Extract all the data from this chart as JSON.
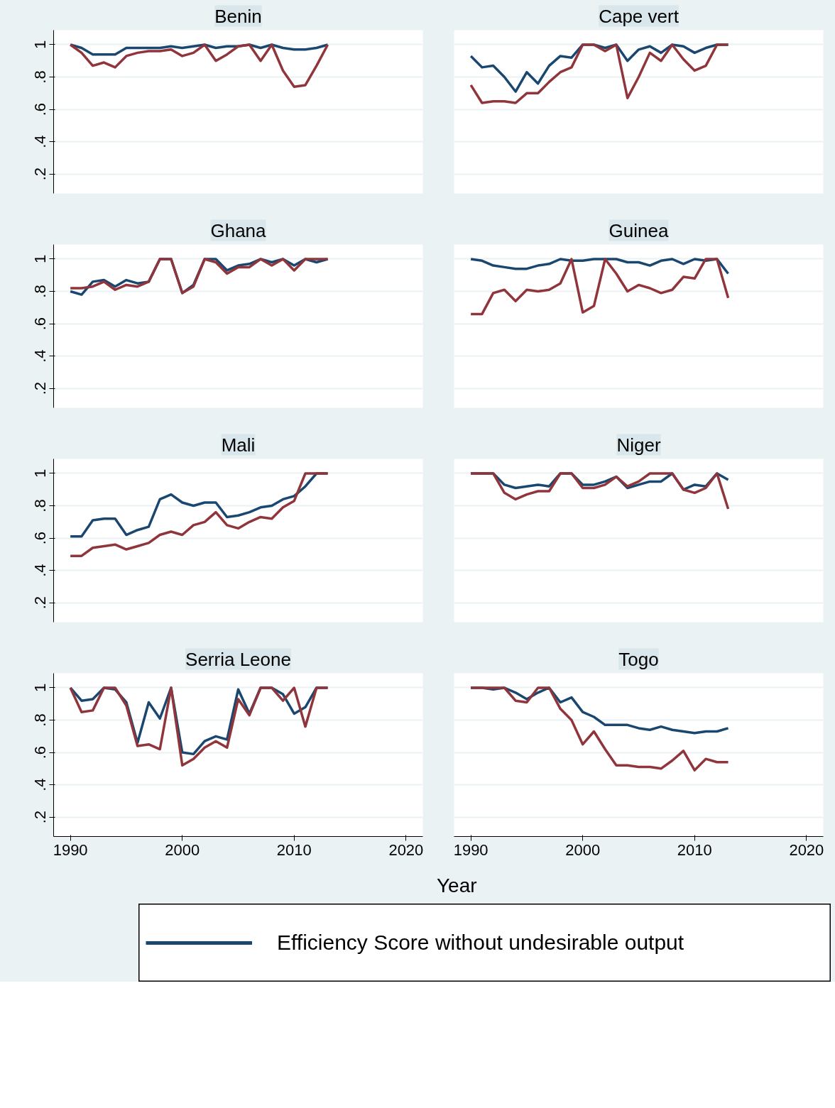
{
  "chart_data": [
    {
      "type": "line",
      "title": "Benin",
      "x": [
        1990,
        1991,
        1992,
        1993,
        1994,
        1995,
        1996,
        1997,
        1998,
        1999,
        2000,
        2001,
        2002,
        2003,
        2004,
        2005,
        2006,
        2007,
        2008,
        2009,
        2010,
        2011,
        2012,
        2013
      ],
      "xlim": [
        1988.5,
        2021.5
      ],
      "ylim": [
        0.08,
        1.09
      ],
      "yticks": [
        {
          "value": 0.2,
          "label": ".2"
        },
        {
          "value": 0.4,
          "label": ".4"
        },
        {
          "value": 0.6,
          "label": ".6"
        },
        {
          "value": 0.8,
          "label": ".8"
        },
        {
          "value": 1,
          "label": "1"
        }
      ],
      "grid": "y",
      "tick_labels": "y",
      "series": [
        {
          "color": "#1a476f",
          "values": [
            1,
            0.98,
            0.94,
            0.94,
            0.94,
            0.98,
            0.98,
            0.98,
            0.98,
            0.99,
            0.98,
            0.99,
            1,
            0.98,
            0.99,
            0.99,
            1,
            0.98,
            1,
            0.98,
            0.97,
            0.97,
            0.98,
            1
          ]
        },
        {
          "color": "#90353b",
          "values": [
            1,
            0.95,
            0.87,
            0.89,
            0.86,
            0.93,
            0.95,
            0.96,
            0.96,
            0.97,
            0.93,
            0.95,
            1,
            0.9,
            0.94,
            0.99,
            1,
            0.9,
            1,
            0.84,
            0.74,
            0.75,
            0.87,
            1
          ]
        }
      ]
    },
    {
      "type": "line",
      "title": "Cape vert",
      "x": [
        1990,
        1991,
        1992,
        1993,
        1994,
        1995,
        1996,
        1997,
        1998,
        1999,
        2000,
        2001,
        2002,
        2003,
        2004,
        2005,
        2006,
        2007,
        2008,
        2009,
        2010,
        2011,
        2012,
        2013
      ],
      "xlim": [
        1988.5,
        2021.5
      ],
      "ylim": [
        0.08,
        1.09
      ],
      "yticks": [
        0.2,
        0.4,
        0.6,
        0.8,
        1
      ],
      "grid": "y",
      "tick_labels": false,
      "series": [
        {
          "color": "#1a476f",
          "values": [
            0.93,
            0.86,
            0.87,
            0.8,
            0.71,
            0.83,
            0.76,
            0.87,
            0.93,
            0.92,
            1,
            1,
            0.98,
            1,
            0.9,
            0.97,
            0.99,
            0.95,
            1,
            0.99,
            0.95,
            0.98,
            1,
            1
          ]
        },
        {
          "color": "#90353b",
          "values": [
            0.75,
            0.64,
            0.65,
            0.65,
            0.64,
            0.7,
            0.7,
            0.77,
            0.83,
            0.86,
            1,
            1,
            0.96,
            1,
            0.67,
            0.8,
            0.95,
            0.9,
            1,
            0.91,
            0.84,
            0.87,
            1,
            1
          ]
        }
      ]
    },
    {
      "type": "line",
      "title": "Ghana",
      "x": [
        1990,
        1991,
        1992,
        1993,
        1994,
        1995,
        1996,
        1997,
        1998,
        1999,
        2000,
        2001,
        2002,
        2003,
        2004,
        2005,
        2006,
        2007,
        2008,
        2009,
        2010,
        2011,
        2012,
        2013
      ],
      "xlim": [
        1988.5,
        2021.5
      ],
      "ylim": [
        0.08,
        1.09
      ],
      "yticks": [
        {
          "value": 0.2,
          "label": ".2"
        },
        {
          "value": 0.4,
          "label": ".4"
        },
        {
          "value": 0.6,
          "label": ".6"
        },
        {
          "value": 0.8,
          "label": ".8"
        },
        {
          "value": 1,
          "label": "1"
        }
      ],
      "grid": "y",
      "tick_labels": "y",
      "series": [
        {
          "color": "#1a476f",
          "values": [
            0.8,
            0.78,
            0.86,
            0.87,
            0.83,
            0.87,
            0.85,
            0.86,
            1,
            1,
            0.79,
            0.84,
            1,
            1,
            0.93,
            0.96,
            0.97,
            1,
            0.98,
            1,
            0.96,
            1,
            0.98,
            1
          ]
        },
        {
          "color": "#90353b",
          "values": [
            0.82,
            0.82,
            0.83,
            0.86,
            0.81,
            0.84,
            0.83,
            0.86,
            1,
            1,
            0.79,
            0.83,
            1,
            0.98,
            0.91,
            0.95,
            0.95,
            1,
            0.96,
            1,
            0.93,
            1,
            1,
            1
          ]
        }
      ]
    },
    {
      "type": "line",
      "title": "Guinea",
      "x": [
        1990,
        1991,
        1992,
        1993,
        1994,
        1995,
        1996,
        1997,
        1998,
        1999,
        2000,
        2001,
        2002,
        2003,
        2004,
        2005,
        2006,
        2007,
        2008,
        2009,
        2010,
        2011,
        2012,
        2013
      ],
      "xlim": [
        1988.5,
        2021.5
      ],
      "ylim": [
        0.08,
        1.09
      ],
      "yticks": [
        0.2,
        0.4,
        0.6,
        0.8,
        1
      ],
      "grid": "y",
      "tick_labels": false,
      "series": [
        {
          "color": "#1a476f",
          "values": [
            1,
            0.99,
            0.96,
            0.95,
            0.94,
            0.94,
            0.96,
            0.97,
            1,
            0.99,
            0.99,
            1,
            1,
            1,
            0.98,
            0.98,
            0.96,
            0.99,
            1,
            0.97,
            1,
            0.99,
            1,
            0.91
          ]
        },
        {
          "color": "#90353b",
          "values": [
            0.66,
            0.66,
            0.79,
            0.81,
            0.74,
            0.81,
            0.8,
            0.81,
            0.85,
            1,
            0.67,
            0.71,
            1,
            0.91,
            0.8,
            0.84,
            0.82,
            0.79,
            0.81,
            0.89,
            0.88,
            1,
            1,
            0.76
          ]
        }
      ]
    },
    {
      "type": "line",
      "title": "Mali",
      "x": [
        1990,
        1991,
        1992,
        1993,
        1994,
        1995,
        1996,
        1997,
        1998,
        1999,
        2000,
        2001,
        2002,
        2003,
        2004,
        2005,
        2006,
        2007,
        2008,
        2009,
        2010,
        2011,
        2012,
        2013
      ],
      "xlim": [
        1988.5,
        2021.5
      ],
      "ylim": [
        0.08,
        1.09
      ],
      "yticks": [
        {
          "value": 0.2,
          "label": ".2"
        },
        {
          "value": 0.4,
          "label": ".4"
        },
        {
          "value": 0.6,
          "label": ".6"
        },
        {
          "value": 0.8,
          "label": ".8"
        },
        {
          "value": 1,
          "label": "1"
        }
      ],
      "grid": "y",
      "tick_labels": "y",
      "series": [
        {
          "color": "#1a476f",
          "values": [
            0.61,
            0.61,
            0.71,
            0.72,
            0.72,
            0.62,
            0.65,
            0.67,
            0.84,
            0.87,
            0.82,
            0.8,
            0.82,
            0.82,
            0.73,
            0.74,
            0.76,
            0.79,
            0.8,
            0.84,
            0.86,
            0.92,
            1,
            1
          ]
        },
        {
          "color": "#90353b",
          "values": [
            0.49,
            0.49,
            0.54,
            0.55,
            0.56,
            0.53,
            0.55,
            0.57,
            0.62,
            0.64,
            0.62,
            0.68,
            0.7,
            0.76,
            0.68,
            0.66,
            0.7,
            0.73,
            0.72,
            0.79,
            0.83,
            1,
            1,
            1
          ]
        }
      ]
    },
    {
      "type": "line",
      "title": "Niger",
      "x": [
        1990,
        1991,
        1992,
        1993,
        1994,
        1995,
        1996,
        1997,
        1998,
        1999,
        2000,
        2001,
        2002,
        2003,
        2004,
        2005,
        2006,
        2007,
        2008,
        2009,
        2010,
        2011,
        2012,
        2013
      ],
      "xlim": [
        1988.5,
        2021.5
      ],
      "ylim": [
        0.08,
        1.09
      ],
      "yticks": [
        0.2,
        0.4,
        0.6,
        0.8,
        1
      ],
      "grid": "y",
      "tick_labels": false,
      "series": [
        {
          "color": "#1a476f",
          "values": [
            1,
            1,
            1,
            0.93,
            0.91,
            0.92,
            0.93,
            0.92,
            1,
            1,
            0.93,
            0.93,
            0.95,
            0.98,
            0.91,
            0.93,
            0.95,
            0.95,
            1,
            0.9,
            0.93,
            0.92,
            1,
            0.96
          ]
        },
        {
          "color": "#90353b",
          "values": [
            1,
            1,
            1,
            0.88,
            0.84,
            0.87,
            0.89,
            0.89,
            1,
            1,
            0.91,
            0.91,
            0.93,
            0.98,
            0.92,
            0.95,
            1,
            1,
            1,
            0.9,
            0.88,
            0.91,
            1,
            0.78
          ]
        }
      ]
    },
    {
      "type": "line",
      "title": "Serria Leone",
      "x": [
        1990,
        1991,
        1992,
        1993,
        1994,
        1995,
        1996,
        1997,
        1998,
        1999,
        2000,
        2001,
        2002,
        2003,
        2004,
        2005,
        2006,
        2007,
        2008,
        2009,
        2010,
        2011,
        2012,
        2013
      ],
      "xlim": [
        1988.5,
        2021.5
      ],
      "xticks": [
        1990,
        2000,
        2010,
        2020
      ],
      "ylim": [
        0.08,
        1.09
      ],
      "yticks": [
        {
          "value": 0.2,
          "label": ".2"
        },
        {
          "value": 0.4,
          "label": ".4"
        },
        {
          "value": 0.6,
          "label": ".6"
        },
        {
          "value": 0.8,
          "label": ".8"
        },
        {
          "value": 1,
          "label": "1"
        }
      ],
      "grid": "y",
      "series": [
        {
          "color": "#1a476f",
          "values": [
            1,
            0.92,
            0.93,
            1,
            0.99,
            0.91,
            0.66,
            0.91,
            0.81,
            1,
            0.6,
            0.59,
            0.67,
            0.7,
            0.68,
            0.99,
            0.84,
            1,
            1,
            0.96,
            0.84,
            0.88,
            1,
            1
          ]
        },
        {
          "color": "#90353b",
          "values": [
            1,
            0.85,
            0.86,
            1,
            1,
            0.89,
            0.64,
            0.65,
            0.62,
            1,
            0.52,
            0.56,
            0.63,
            0.67,
            0.63,
            0.93,
            0.83,
            1,
            1,
            0.92,
            1,
            0.76,
            1,
            1
          ]
        }
      ]
    },
    {
      "type": "line",
      "title": "Togo",
      "xlabel": "Year",
      "legend": "bottom",
      "x": [
        1990,
        1991,
        1992,
        1993,
        1994,
        1995,
        1996,
        1997,
        1998,
        1999,
        2000,
        2001,
        2002,
        2003,
        2004,
        2005,
        2006,
        2007,
        2008,
        2009,
        2010,
        2011,
        2012,
        2013
      ],
      "xlim": [
        1988.5,
        2021.5
      ],
      "xticks": [
        1990,
        2000,
        2010,
        2020
      ],
      "ylim": [
        0.08,
        1.09
      ],
      "yticks": [
        0.2,
        0.4,
        0.6,
        0.8,
        1
      ],
      "grid": "y",
      "tick_labels": "x",
      "series": [
        {
          "name": "Efficiency Score without undesirable output",
          "color": "#1a476f",
          "values": [
            1,
            1,
            0.99,
            1,
            0.97,
            0.93,
            0.97,
            1,
            0.91,
            0.94,
            0.85,
            0.82,
            0.77,
            0.77,
            0.77,
            0.75,
            0.74,
            0.76,
            0.74,
            0.73,
            0.72,
            0.73,
            0.73,
            0.75
          ]
        },
        {
          "color": "#90353b",
          "values": [
            1,
            1,
            1,
            1,
            0.92,
            0.91,
            1,
            1,
            0.87,
            0.8,
            0.65,
            0.73,
            0.62,
            0.52,
            0.52,
            0.51,
            0.51,
            0.5,
            0.55,
            0.61,
            0.49,
            0.56,
            0.54,
            0.54
          ]
        }
      ]
    }
  ]
}
